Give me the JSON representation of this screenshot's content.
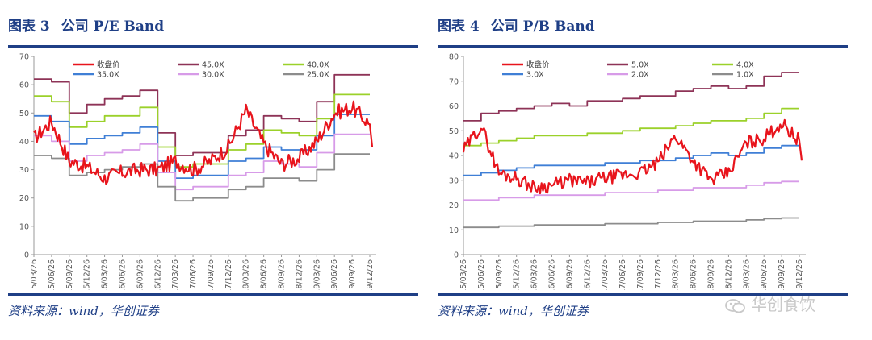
{
  "left": {
    "figure_label": "图表 3",
    "figure_title": "公司 P/E Band",
    "source": "资料来源：wind，华创证券"
  },
  "right": {
    "figure_label": "图表 4",
    "figure_title": "公司 P/B Band",
    "source": "资料来源：wind，华创证券"
  },
  "watermark": {
    "text": "华创食饮",
    "icon": "wechat-icon"
  },
  "chart_data": [
    {
      "type": "line",
      "title": "公司 P/E Band",
      "ylim": [
        0,
        70
      ],
      "yticks": [
        0,
        10,
        20,
        30,
        40,
        50,
        60,
        70
      ],
      "x": [
        "15/03/26",
        "15/06/26",
        "15/09/26",
        "15/12/26",
        "16/03/26",
        "16/06/26",
        "16/09/26",
        "16/12/26",
        "17/03/26",
        "17/06/26",
        "17/09/26",
        "17/12/26",
        "18/03/26",
        "18/06/26",
        "18/09/26",
        "18/12/26",
        "19/03/26",
        "19/06/26",
        "19/09/26",
        "19/12/26"
      ],
      "legend": {
        "placement": "top",
        "columns": 3
      },
      "grid": false,
      "series": [
        {
          "name": "收盘价",
          "color": "#e8141c",
          "width": 2.2,
          "values": [
            41,
            47,
            33,
            31,
            27,
            29,
            30,
            30,
            33,
            30,
            33,
            38,
            51,
            39,
            32,
            34,
            40,
            50,
            52,
            46
          ],
          "end": 38
        },
        {
          "name": "45.0X",
          "color": "#8e3357",
          "width": 1.8,
          "values": [
            62,
            61,
            50,
            53,
            55,
            56,
            58,
            43,
            35,
            36,
            36,
            42,
            44,
            49,
            48,
            47,
            54,
            63.5,
            63.5,
            63.5
          ]
        },
        {
          "name": "40.0X",
          "color": "#9bd12a",
          "width": 1.8,
          "values": [
            56,
            54,
            45,
            47,
            49,
            49,
            52,
            38,
            31,
            32,
            32,
            37,
            39,
            44,
            43,
            42,
            48,
            56.5,
            56.5,
            56.5
          ]
        },
        {
          "name": "35.0X",
          "color": "#3f7fd6",
          "width": 1.8,
          "values": [
            49,
            47,
            39,
            41,
            42,
            43,
            45,
            33,
            27,
            28,
            28,
            33,
            34,
            38,
            37,
            37,
            42,
            49.5,
            49.5,
            49.5
          ]
        },
        {
          "name": "30.0X",
          "color": "#d79be8",
          "width": 1.8,
          "values": [
            42,
            40,
            33,
            35,
            36,
            37,
            39,
            29,
            23,
            24,
            24,
            28,
            29,
            33,
            32,
            31,
            36,
            42.5,
            42.5,
            42.5
          ]
        },
        {
          "name": "25.0X",
          "color": "#8c8c8c",
          "width": 1.8,
          "values": [
            35,
            34,
            28,
            29,
            30,
            31,
            32,
            24,
            19,
            20,
            20,
            23,
            24,
            27,
            27,
            26,
            30,
            35.5,
            35.5,
            35.5
          ]
        }
      ]
    },
    {
      "type": "line",
      "title": "公司 P/B Band",
      "ylim": [
        0,
        80
      ],
      "yticks": [
        0,
        10,
        20,
        30,
        40,
        50,
        60,
        70,
        80
      ],
      "x": [
        "15/03/26",
        "15/06/26",
        "15/09/26",
        "15/12/26",
        "16/03/26",
        "16/06/26",
        "16/09/26",
        "16/12/26",
        "17/03/26",
        "17/06/26",
        "17/09/26",
        "17/12/26",
        "18/03/26",
        "18/06/26",
        "18/09/26",
        "18/12/26",
        "19/03/26",
        "19/06/26",
        "19/09/26",
        "19/12/26"
      ],
      "legend": {
        "placement": "top",
        "columns": 3
      },
      "grid": false,
      "series": [
        {
          "name": "收盘价",
          "color": "#e8141c",
          "width": 2.2,
          "values": [
            42,
            52,
            33,
            31,
            27,
            28,
            30,
            29,
            31,
            32,
            33,
            37,
            48,
            38,
            30,
            33,
            45,
            47,
            53,
            46
          ],
          "end": 38
        },
        {
          "name": "5.0X",
          "color": "#8e3357",
          "width": 1.8,
          "values": [
            54,
            57,
            58,
            59,
            60,
            61,
            60,
            62,
            62,
            63,
            64,
            64,
            66,
            67,
            68,
            67,
            68,
            72,
            73.5,
            73.5
          ]
        },
        {
          "name": "4.0X",
          "color": "#9bd12a",
          "width": 1.8,
          "values": [
            44,
            45,
            46,
            47,
            48,
            48,
            48,
            49,
            49,
            50,
            51,
            51,
            52,
            53,
            54,
            54,
            55,
            57,
            59,
            59
          ]
        },
        {
          "name": "3.0X",
          "color": "#3f7fd6",
          "width": 1.8,
          "values": [
            32,
            33,
            34,
            35,
            36,
            36,
            36,
            36,
            37,
            37,
            38,
            38,
            39,
            40,
            41,
            40,
            41,
            43,
            44,
            44
          ]
        },
        {
          "name": "2.0X",
          "color": "#d79be8",
          "width": 1.8,
          "values": [
            22,
            22,
            23,
            23,
            24,
            24,
            24,
            24,
            25,
            25,
            25,
            26,
            26,
            27,
            27,
            27,
            28,
            29,
            29.5,
            29.5
          ]
        },
        {
          "name": "1.0X",
          "color": "#8c8c8c",
          "width": 1.8,
          "values": [
            11,
            11,
            11.5,
            11.5,
            12,
            12,
            12,
            12,
            12.5,
            12.5,
            12.5,
            13,
            13,
            13.5,
            13.5,
            13.5,
            14,
            14.5,
            14.8,
            14.8
          ]
        }
      ]
    }
  ]
}
